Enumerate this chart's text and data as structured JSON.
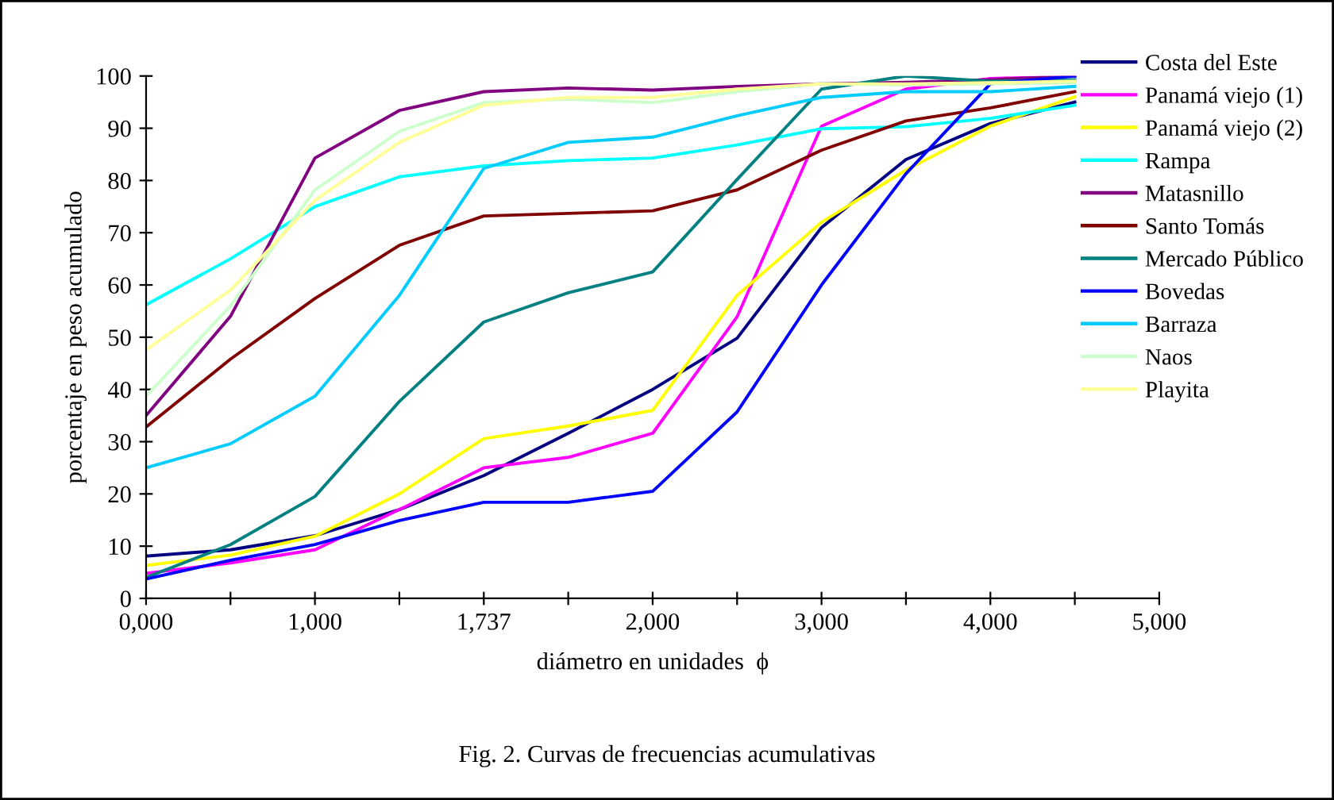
{
  "chart_data": {
    "type": "line",
    "xlabel": "diámetro en unidades  ϕ",
    "ylabel": "porcentaje en peso acumulado",
    "annotations": [
      "Fig. 2. Curvas de frecuencias acumulativas"
    ],
    "categories": [
      "0,000",
      null,
      "1,000",
      null,
      "1,737",
      null,
      "2,000",
      null,
      "3,000",
      null,
      "4,000",
      null,
      "5,000"
    ],
    "ylim": [
      0,
      100
    ],
    "yticks": [
      0,
      10,
      20,
      30,
      40,
      50,
      60,
      70,
      80,
      90,
      100
    ],
    "grid": false,
    "legend": "right",
    "marker": "none",
    "line_style": "solid",
    "series": [
      {
        "name": "Costa del Este",
        "color": "#000080",
        "values": [
          8.1,
          9.3,
          12,
          17,
          23.5,
          31.6,
          40,
          49.8,
          71,
          84,
          90.9,
          95,
          null
        ]
      },
      {
        "name": "Panamá viejo (1)",
        "color": "#ff00ff",
        "values": [
          4.8,
          6.8,
          9.3,
          17,
          25,
          27,
          31.6,
          53.9,
          90.4,
          97.5,
          99.5,
          100,
          null
        ]
      },
      {
        "name": "Panamá viejo (2)",
        "color": "#ffff00",
        "values": [
          6.3,
          8.3,
          11.9,
          20,
          30.6,
          33,
          36,
          58,
          72,
          82,
          90.4,
          96,
          null
        ]
      },
      {
        "name": "Rampa",
        "color": "#00ffff",
        "values": [
          56.2,
          65,
          75,
          80.7,
          82.8,
          83.8,
          84.3,
          86.8,
          89.9,
          90.3,
          91.9,
          94.4,
          null
        ]
      },
      {
        "name": "Matasnillo",
        "color": "#800080",
        "values": [
          35,
          54,
          84.3,
          93.4,
          97,
          97.7,
          97.3,
          98,
          98.5,
          98.8,
          99.3,
          100,
          null
        ]
      },
      {
        "name": "Santo Tomás",
        "color": "#800000",
        "values": [
          32.8,
          45.8,
          57.4,
          67.6,
          73.2,
          73.7,
          74.2,
          78.2,
          85.8,
          91.4,
          93.9,
          97,
          null
        ]
      },
      {
        "name": "Mercado Público",
        "color": "#008080",
        "values": [
          4,
          10.3,
          19.5,
          37.7,
          52.9,
          58.5,
          62.5,
          80.2,
          97.5,
          100,
          99,
          99.3,
          null
        ]
      },
      {
        "name": "Bovedas",
        "color": "#0000ff",
        "values": [
          3.7,
          7.3,
          10.3,
          14.9,
          18.4,
          18.4,
          20.5,
          35.7,
          60,
          81.3,
          98.5,
          100,
          null
        ]
      },
      {
        "name": "Barraza",
        "color": "#00ccff",
        "values": [
          25,
          29.6,
          38.7,
          58,
          82.3,
          87.3,
          88.3,
          92.4,
          95.9,
          97,
          97,
          98,
          null
        ]
      },
      {
        "name": "Naos",
        "color": "#ccffcc",
        "values": [
          38.7,
          56,
          78.2,
          89.4,
          94.9,
          95.6,
          94.9,
          97,
          98.5,
          98.3,
          98.5,
          98.7,
          null
        ]
      },
      {
        "name": "Playita",
        "color": "#ffff99",
        "values": [
          47.6,
          59,
          76.2,
          87.3,
          94.4,
          95.9,
          95.9,
          97.5,
          98.5,
          98.5,
          98.7,
          99,
          null
        ]
      }
    ]
  }
}
